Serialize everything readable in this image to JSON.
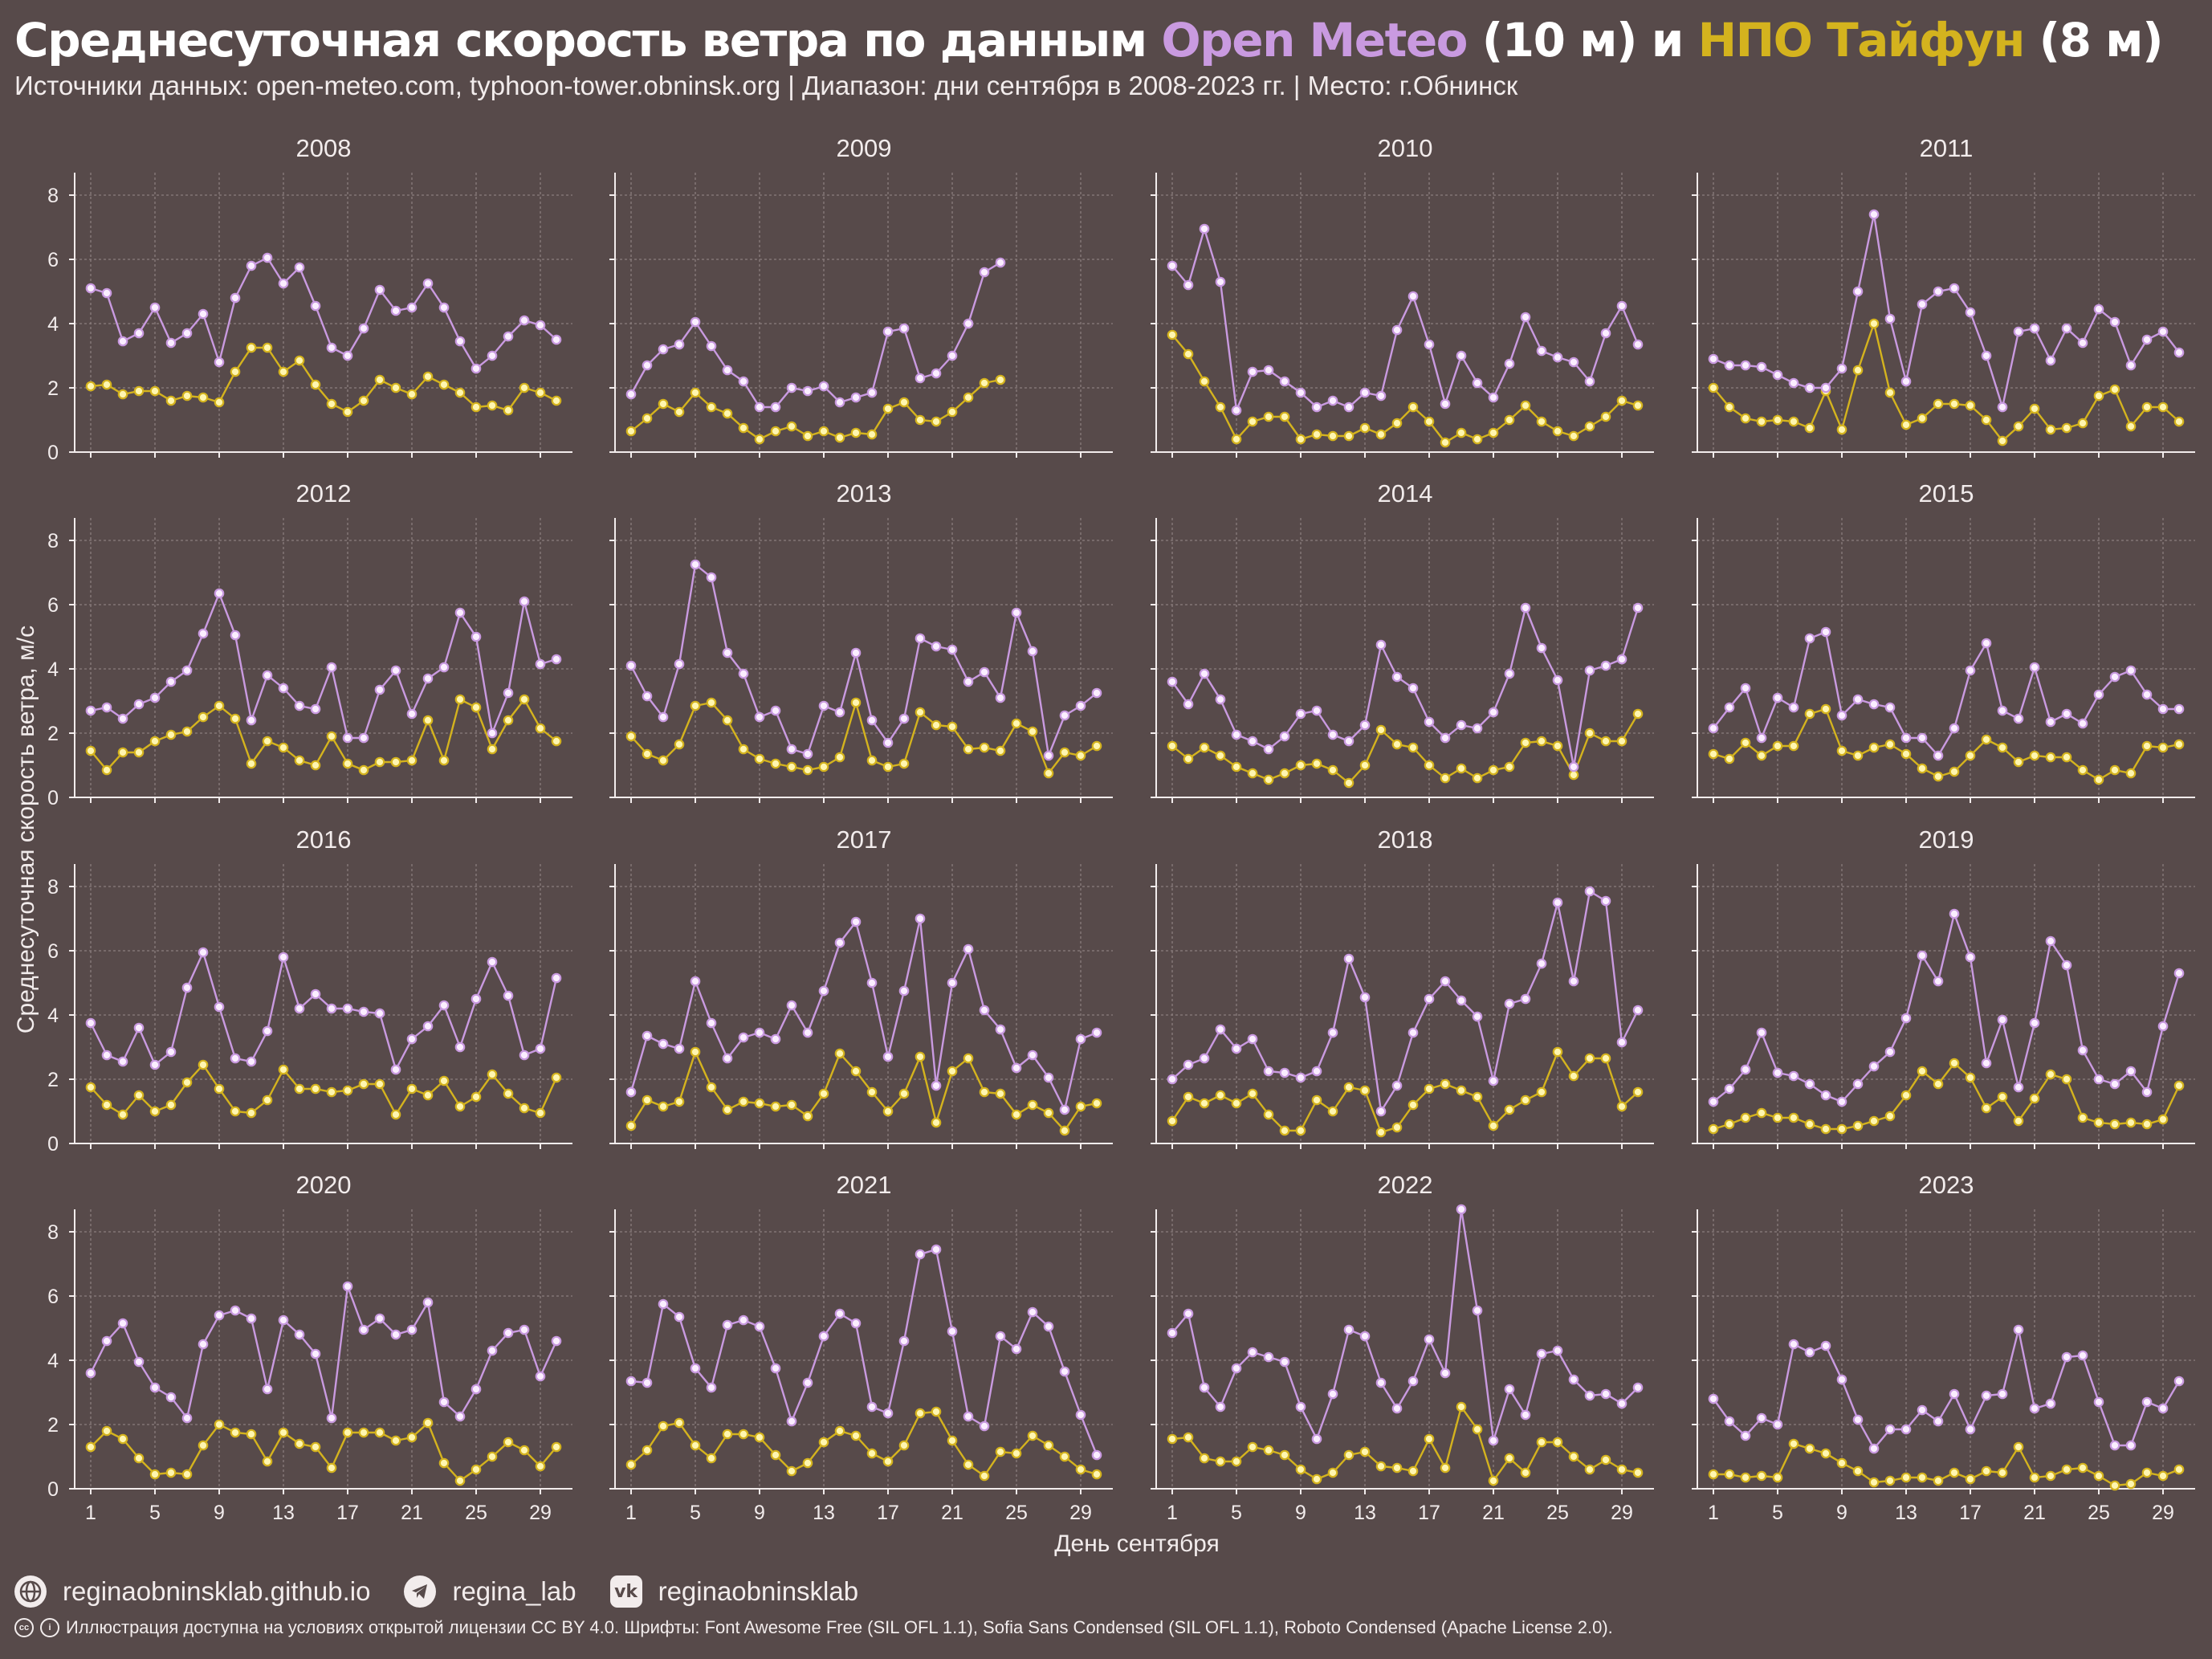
{
  "header": {
    "title_prefix": "Среднесуточная скорость ветра по данным ",
    "title_source_a": "Open Meteo",
    "title_mid": " (10 м) и ",
    "title_source_b": "НПО Тайфун",
    "title_suffix": " (8 м)",
    "subtitle": "Источники данных: open-meteo.com, typhoon-tower.obninsk.org | Диапазон: дни сентября в 2008-2023 гг. | Место: г.Обнинск"
  },
  "colors": {
    "background": "#574a4a",
    "open_meteo": "#c99ae0",
    "typhoon": "#d4b31e",
    "text": "#f2ecec",
    "grid": "#8a7d7d"
  },
  "chart_data": {
    "type": "line",
    "facet_by": "year",
    "xlabel": "День сентября",
    "ylabel": "Среднесуточная скорость ветра, м/с",
    "xlim": [
      0,
      31
    ],
    "ylim": [
      0,
      8.7
    ],
    "x_ticks": [
      1,
      5,
      9,
      13,
      17,
      21,
      25,
      29
    ],
    "y_ticks": [
      0,
      2,
      4,
      6,
      8
    ],
    "series_names": [
      "Open Meteo (10 м)",
      "НПО Тайфун (8 м)"
    ],
    "panels": [
      {
        "year": "2008",
        "open_meteo": [
          5.1,
          4.95,
          3.45,
          3.7,
          4.5,
          3.4,
          3.7,
          4.3,
          2.8,
          4.8,
          5.8,
          6.05,
          5.25,
          5.75,
          4.55,
          3.25,
          3.0,
          3.85,
          5.05,
          4.4,
          4.5,
          5.25,
          4.5,
          3.45,
          2.6,
          3.0,
          3.6,
          4.1,
          3.95,
          3.5
        ],
        "typhoon": [
          2.05,
          2.1,
          1.8,
          1.9,
          1.9,
          1.6,
          1.75,
          1.7,
          1.55,
          2.5,
          3.25,
          3.25,
          2.5,
          2.85,
          2.1,
          1.5,
          1.25,
          1.6,
          2.25,
          2.0,
          1.8,
          2.35,
          2.1,
          1.85,
          1.4,
          1.45,
          1.3,
          2.0,
          1.85,
          1.6
        ]
      },
      {
        "year": "2009",
        "open_meteo": [
          1.8,
          2.7,
          3.2,
          3.35,
          4.05,
          3.3,
          2.55,
          2.2,
          1.4,
          1.4,
          2.0,
          1.9,
          2.05,
          1.55,
          1.7,
          1.85,
          3.75,
          3.85,
          2.3,
          2.45,
          3.0,
          4.0,
          5.6,
          5.9
        ],
        "typhoon": [
          0.65,
          1.05,
          1.5,
          1.25,
          1.85,
          1.4,
          1.2,
          0.75,
          0.4,
          0.65,
          0.8,
          0.5,
          0.65,
          0.45,
          0.6,
          0.55,
          1.35,
          1.55,
          1.0,
          0.95,
          1.25,
          1.7,
          2.15,
          2.25
        ]
      },
      {
        "year": "2010",
        "open_meteo": [
          5.8,
          5.2,
          6.95,
          5.3,
          1.3,
          2.5,
          2.55,
          2.2,
          1.85,
          1.4,
          1.6,
          1.4,
          1.85,
          1.75,
          3.8,
          4.85,
          3.35,
          1.5,
          3.0,
          2.15,
          1.7,
          2.75,
          4.2,
          3.15,
          2.95,
          2.8,
          2.2,
          3.7,
          4.55,
          3.35
        ],
        "typhoon": [
          3.65,
          3.05,
          2.2,
          1.4,
          0.4,
          0.95,
          1.1,
          1.1,
          0.4,
          0.55,
          0.5,
          0.5,
          0.75,
          0.55,
          0.9,
          1.4,
          0.95,
          0.3,
          0.6,
          0.4,
          0.6,
          1.0,
          1.45,
          0.95,
          0.65,
          0.5,
          0.8,
          1.1,
          1.6,
          1.45
        ]
      },
      {
        "year": "2011",
        "open_meteo": [
          2.9,
          2.7,
          2.7,
          2.65,
          2.4,
          2.15,
          2.0,
          2.0,
          2.6,
          5.0,
          7.4,
          4.15,
          2.2,
          4.6,
          5.0,
          5.1,
          4.35,
          3.0,
          1.4,
          3.75,
          3.85,
          2.85,
          3.85,
          3.4,
          4.45,
          4.05,
          2.7,
          3.5,
          3.75,
          3.1
        ],
        "typhoon": [
          2.0,
          1.4,
          1.05,
          0.95,
          1.0,
          0.95,
          0.75,
          1.9,
          0.7,
          2.55,
          4.0,
          1.85,
          0.85,
          1.05,
          1.5,
          1.5,
          1.45,
          1.0,
          0.35,
          0.8,
          1.35,
          0.7,
          0.75,
          0.9,
          1.75,
          1.95,
          0.8,
          1.4,
          1.4,
          0.95
        ]
      },
      {
        "year": "2012",
        "open_meteo": [
          2.7,
          2.8,
          2.45,
          2.9,
          3.1,
          3.6,
          3.95,
          5.1,
          6.35,
          5.05,
          2.4,
          3.8,
          3.4,
          2.85,
          2.75,
          4.05,
          1.85,
          1.85,
          3.35,
          3.95,
          2.6,
          3.7,
          4.05,
          5.75,
          5.0,
          2.0,
          3.25,
          6.1,
          4.15,
          4.3
        ],
        "typhoon": [
          1.45,
          0.85,
          1.4,
          1.4,
          1.75,
          1.95,
          2.05,
          2.5,
          2.85,
          2.45,
          1.05,
          1.75,
          1.55,
          1.15,
          1.0,
          1.9,
          1.05,
          0.85,
          1.1,
          1.1,
          1.15,
          2.4,
          1.15,
          3.05,
          2.8,
          1.5,
          2.4,
          3.05,
          2.15,
          1.75
        ]
      },
      {
        "year": "2013",
        "open_meteo": [
          4.1,
          3.15,
          2.5,
          4.15,
          7.25,
          6.85,
          4.5,
          3.85,
          2.5,
          2.7,
          1.5,
          1.35,
          2.85,
          2.65,
          4.5,
          2.4,
          1.7,
          2.45,
          4.95,
          4.7,
          4.6,
          3.6,
          3.9,
          3.1,
          5.75,
          4.55,
          1.3,
          2.55,
          2.85,
          3.25
        ],
        "typhoon": [
          1.9,
          1.35,
          1.15,
          1.65,
          2.85,
          2.95,
          2.4,
          1.5,
          1.2,
          1.05,
          0.95,
          0.85,
          0.95,
          1.25,
          2.95,
          1.15,
          0.95,
          1.05,
          2.65,
          2.25,
          2.2,
          1.5,
          1.55,
          1.45,
          2.3,
          2.05,
          0.75,
          1.4,
          1.3,
          1.6
        ]
      },
      {
        "year": "2014",
        "open_meteo": [
          3.6,
          2.9,
          3.85,
          3.05,
          1.95,
          1.75,
          1.5,
          1.9,
          2.6,
          2.7,
          1.95,
          1.75,
          2.25,
          4.75,
          3.75,
          3.4,
          2.35,
          1.85,
          2.25,
          2.15,
          2.65,
          3.85,
          5.9,
          4.65,
          3.65,
          0.95,
          3.95,
          4.1,
          4.3,
          5.9
        ],
        "typhoon": [
          1.6,
          1.2,
          1.55,
          1.3,
          0.95,
          0.75,
          0.55,
          0.75,
          1.0,
          1.05,
          0.85,
          0.45,
          1.0,
          2.1,
          1.65,
          1.55,
          1.0,
          0.6,
          0.9,
          0.6,
          0.85,
          0.95,
          1.7,
          1.75,
          1.6,
          0.7,
          2.0,
          1.75,
          1.75,
          2.6
        ]
      },
      {
        "year": "2015",
        "open_meteo": [
          2.15,
          2.8,
          3.4,
          1.85,
          3.1,
          2.8,
          4.95,
          5.15,
          2.55,
          3.05,
          2.9,
          2.8,
          1.85,
          1.85,
          1.3,
          2.15,
          3.95,
          4.8,
          2.7,
          2.45,
          4.05,
          2.35,
          2.6,
          2.3,
          3.2,
          3.75,
          3.95,
          3.2,
          2.75,
          2.75
        ],
        "typhoon": [
          1.35,
          1.2,
          1.7,
          1.3,
          1.6,
          1.6,
          2.6,
          2.75,
          1.45,
          1.3,
          1.55,
          1.65,
          1.35,
          0.9,
          0.65,
          0.8,
          1.3,
          1.8,
          1.55,
          1.1,
          1.3,
          1.25,
          1.25,
          0.85,
          0.55,
          0.85,
          0.75,
          1.6,
          1.55,
          1.65
        ]
      },
      {
        "year": "2016",
        "open_meteo": [
          3.75,
          2.75,
          2.55,
          3.6,
          2.45,
          2.85,
          4.85,
          5.95,
          4.25,
          2.65,
          2.55,
          3.5,
          5.8,
          4.2,
          4.65,
          4.2,
          4.2,
          4.1,
          4.05,
          2.3,
          3.25,
          3.65,
          4.3,
          3.0,
          4.5,
          5.65,
          4.6,
          2.75,
          2.95,
          5.15
        ],
        "typhoon": [
          1.75,
          1.2,
          0.9,
          1.5,
          1.0,
          1.2,
          1.9,
          2.45,
          1.7,
          1.0,
          0.95,
          1.35,
          2.3,
          1.7,
          1.7,
          1.6,
          1.65,
          1.85,
          1.85,
          0.9,
          1.7,
          1.5,
          1.95,
          1.15,
          1.45,
          2.15,
          1.55,
          1.1,
          0.95,
          2.05
        ]
      },
      {
        "year": "2017",
        "open_meteo": [
          1.6,
          3.35,
          3.1,
          2.95,
          5.05,
          3.75,
          2.65,
          3.3,
          3.45,
          3.25,
          4.3,
          3.45,
          4.75,
          6.25,
          6.9,
          5.0,
          2.7,
          4.75,
          7.0,
          1.8,
          5.0,
          6.05,
          4.15,
          3.55,
          2.35,
          2.75,
          2.05,
          1.05,
          3.25,
          3.45
        ],
        "typhoon": [
          0.55,
          1.35,
          1.15,
          1.3,
          2.85,
          1.75,
          1.05,
          1.3,
          1.25,
          1.15,
          1.2,
          0.85,
          1.55,
          2.8,
          2.25,
          1.6,
          1.0,
          1.55,
          2.7,
          0.65,
          2.25,
          2.65,
          1.6,
          1.55,
          0.9,
          1.2,
          0.95,
          0.4,
          1.15,
          1.25
        ]
      },
      {
        "year": "2018",
        "open_meteo": [
          2.0,
          2.45,
          2.65,
          3.55,
          2.95,
          3.25,
          2.25,
          2.2,
          2.05,
          2.25,
          3.45,
          5.75,
          4.55,
          1.0,
          1.8,
          3.45,
          4.5,
          5.05,
          4.45,
          3.95,
          1.95,
          4.35,
          4.5,
          5.6,
          7.5,
          5.05,
          7.85,
          7.55,
          3.15,
          4.15
        ],
        "typhoon": [
          0.7,
          1.45,
          1.25,
          1.5,
          1.25,
          1.55,
          0.9,
          0.4,
          0.4,
          1.35,
          1.0,
          1.75,
          1.65,
          0.35,
          0.5,
          1.2,
          1.7,
          1.85,
          1.65,
          1.45,
          0.55,
          1.05,
          1.35,
          1.6,
          2.85,
          2.1,
          2.65,
          2.65,
          1.15,
          1.6
        ]
      },
      {
        "year": "2019",
        "open_meteo": [
          1.3,
          1.7,
          2.3,
          3.45,
          2.2,
          2.1,
          1.85,
          1.5,
          1.3,
          1.85,
          2.4,
          2.85,
          3.9,
          5.85,
          5.05,
          7.15,
          5.8,
          2.5,
          3.85,
          1.75,
          3.75,
          6.3,
          5.55,
          2.9,
          2.0,
          1.85,
          2.25,
          1.6,
          3.65,
          5.3
        ],
        "typhoon": [
          0.45,
          0.6,
          0.8,
          0.95,
          0.8,
          0.8,
          0.6,
          0.45,
          0.45,
          0.55,
          0.7,
          0.85,
          1.5,
          2.25,
          1.85,
          2.5,
          2.05,
          1.1,
          1.45,
          0.7,
          1.4,
          2.15,
          2.0,
          0.8,
          0.65,
          0.6,
          0.65,
          0.6,
          0.75,
          1.8
        ]
      },
      {
        "year": "2020",
        "open_meteo": [
          3.6,
          4.6,
          5.15,
          3.95,
          3.15,
          2.85,
          2.2,
          4.5,
          5.4,
          5.55,
          5.3,
          3.1,
          5.25,
          4.8,
          4.2,
          2.2,
          6.3,
          4.95,
          5.3,
          4.8,
          4.95,
          5.8,
          2.7,
          2.25,
          3.1,
          4.3,
          4.85,
          4.95,
          3.5,
          4.6
        ],
        "typhoon": [
          1.3,
          1.8,
          1.55,
          0.95,
          0.45,
          0.5,
          0.45,
          1.35,
          2.0,
          1.75,
          1.7,
          0.85,
          1.75,
          1.4,
          1.3,
          0.65,
          1.75,
          1.75,
          1.75,
          1.5,
          1.6,
          2.05,
          0.8,
          0.25,
          0.6,
          1.0,
          1.45,
          1.2,
          0.7,
          1.3
        ]
      },
      {
        "year": "2021",
        "open_meteo": [
          3.35,
          3.3,
          5.75,
          5.35,
          3.75,
          3.15,
          5.1,
          5.25,
          5.05,
          3.75,
          2.1,
          3.3,
          4.75,
          5.45,
          5.15,
          2.55,
          2.35,
          4.6,
          7.3,
          7.45,
          4.9,
          2.25,
          1.95,
          4.75,
          4.35,
          5.5,
          5.05,
          3.65,
          2.3,
          1.05
        ],
        "typhoon": [
          0.75,
          1.2,
          1.95,
          2.05,
          1.35,
          0.95,
          1.7,
          1.7,
          1.6,
          1.05,
          0.55,
          0.8,
          1.45,
          1.8,
          1.65,
          1.1,
          0.85,
          1.35,
          2.35,
          2.4,
          1.5,
          0.75,
          0.4,
          1.15,
          1.1,
          1.65,
          1.35,
          1.0,
          0.6,
          0.45
        ]
      },
      {
        "year": "2022",
        "open_meteo": [
          4.85,
          5.45,
          3.15,
          2.55,
          3.75,
          4.25,
          4.1,
          3.95,
          2.55,
          1.55,
          2.95,
          4.95,
          4.75,
          3.3,
          2.5,
          3.35,
          4.65,
          3.6,
          8.7,
          5.55,
          1.5,
          3.1,
          2.3,
          4.2,
          4.3,
          3.4,
          2.9,
          2.95,
          2.65,
          3.15
        ],
        "typhoon": [
          1.55,
          1.6,
          0.95,
          0.85,
          0.85,
          1.3,
          1.2,
          1.05,
          0.6,
          0.3,
          0.5,
          1.05,
          1.15,
          0.7,
          0.65,
          0.55,
          1.55,
          0.65,
          2.55,
          1.85,
          0.25,
          0.95,
          0.5,
          1.45,
          1.45,
          1.0,
          0.6,
          0.9,
          0.6,
          0.5
        ]
      },
      {
        "year": "2023",
        "open_meteo": [
          2.8,
          2.1,
          1.65,
          2.2,
          2.0,
          4.5,
          4.25,
          4.45,
          3.4,
          2.15,
          1.25,
          1.85,
          1.85,
          2.45,
          2.1,
          2.95,
          1.85,
          2.9,
          2.95,
          4.95,
          2.5,
          2.65,
          4.1,
          4.15,
          2.7,
          1.35,
          1.35,
          2.7,
          2.5,
          3.35
        ],
        "typhoon": [
          0.45,
          0.45,
          0.35,
          0.4,
          0.35,
          1.4,
          1.25,
          1.1,
          0.8,
          0.55,
          0.2,
          0.25,
          0.35,
          0.35,
          0.25,
          0.5,
          0.3,
          0.55,
          0.5,
          1.3,
          0.35,
          0.4,
          0.6,
          0.65,
          0.4,
          0.1,
          0.15,
          0.5,
          0.4,
          0.6
        ]
      }
    ]
  },
  "footer": {
    "links": [
      {
        "icon": "globe-icon",
        "label": "reginaobninsklab.github.io"
      },
      {
        "icon": "telegram-icon",
        "label": "regina_lab"
      },
      {
        "icon": "vk-icon",
        "label": "reginaobninsklab"
      }
    ],
    "license_icon": "cc-by-icon",
    "license_text": "Иллюстрация доступна на условиях открытой лицензии CC BY 4.0.  Шрифты: Font Awesome Free (SIL OFL 1.1), Sofia Sans Condensed (SIL OFL 1.1), Roboto Condensed (Apache License 2.0)."
  }
}
